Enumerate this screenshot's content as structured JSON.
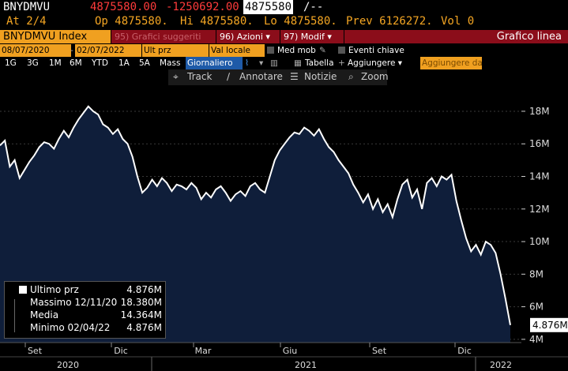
{
  "ticker": {
    "symbol": "BNYDMVU",
    "last": "4875580.00",
    "change": "-1250692.00",
    "last_plain": "4875580",
    "suffix": "/--",
    "at": "At 2/4",
    "op": "Op 4875580.",
    "hi": "Hi 4875580.",
    "lo": "Lo 4875580.",
    "prev": "Prev  6126272.",
    "vol": "Vol 0"
  },
  "bar": {
    "index_label": "BNYDMVU Index",
    "suggest_label": "95) Grafici suggeriti",
    "actions_label": "96) Azioni",
    "modify_label": "97) Modif",
    "title": "Grafico linea"
  },
  "controls": {
    "date_from": "08/07/2020",
    "date_to": "02/07/2022",
    "price_field": "Ult prz",
    "currency": "Val locale",
    "mov_avg": "Med mob",
    "key_events": "Eventi chiave",
    "periods": [
      "1G",
      "3G",
      "1M",
      "6M",
      "YTD",
      "1A",
      "5A",
      "Mass"
    ],
    "frequency": "Giornaliero",
    "table": "Tabella",
    "add": "Aggiungere",
    "add_placeholder": "Aggiungere da"
  },
  "toolbar": {
    "track": "Track",
    "annotate": "Annotare",
    "news": "Notizie",
    "zoom": "Zoom"
  },
  "legend": {
    "last_label": "Ultimo prz",
    "last_value": "4.876M",
    "max_label": "Massimo 12/11/20",
    "max_value": "18.380M",
    "avg_label": "Media",
    "avg_value": "14.364M",
    "min_label": "Minimo 02/04/22",
    "min_value": "4.876M"
  },
  "colors": {
    "amber": "#f5a623",
    "red": "#ff3b3b",
    "dark_red": "#8b0d1a",
    "line": "#ffffff",
    "area": "#0f1e3a"
  },
  "chart_data": {
    "type": "area",
    "x_month_labels": [
      "Set",
      "Dic",
      "Mar",
      "Giu",
      "Set",
      "Dic"
    ],
    "x_year_labels": [
      "2020",
      "2021",
      "2022"
    ],
    "y_tick_labels": [
      "4M",
      "6M",
      "8M",
      "10M",
      "12M",
      "14M",
      "16M",
      "18M"
    ],
    "ylim": [
      3.8,
      19.5
    ],
    "last_label": "4.876M",
    "values": [
      15.9,
      16.2,
      14.6,
      15.0,
      13.9,
      14.4,
      14.9,
      15.3,
      15.8,
      16.1,
      16.0,
      15.7,
      16.3,
      16.8,
      16.4,
      17.0,
      17.5,
      17.9,
      18.3,
      18.0,
      17.8,
      17.2,
      17.0,
      16.6,
      16.9,
      16.3,
      16.0,
      15.2,
      14.0,
      13.0,
      13.3,
      13.8,
      13.4,
      13.9,
      13.6,
      13.1,
      13.5,
      13.4,
      13.2,
      13.6,
      13.3,
      12.6,
      13.0,
      12.7,
      13.2,
      13.4,
      13.0,
      12.5,
      12.9,
      13.1,
      12.8,
      13.4,
      13.6,
      13.2,
      13.0,
      14.0,
      15.0,
      15.6,
      16.0,
      16.4,
      16.7,
      16.6,
      17.0,
      16.8,
      16.5,
      16.9,
      16.3,
      15.8,
      15.5,
      15.0,
      14.6,
      14.2,
      13.5,
      13.0,
      12.4,
      12.9,
      12.0,
      12.6,
      11.8,
      12.3,
      11.5,
      12.6,
      13.5,
      13.8,
      12.7,
      13.2,
      12.0,
      13.6,
      13.9,
      13.4,
      14.0,
      13.8,
      14.1,
      12.5,
      11.3,
      10.2,
      9.4,
      9.8,
      9.2,
      10.0,
      9.8,
      9.3,
      8.0,
      6.5,
      4.876
    ]
  }
}
